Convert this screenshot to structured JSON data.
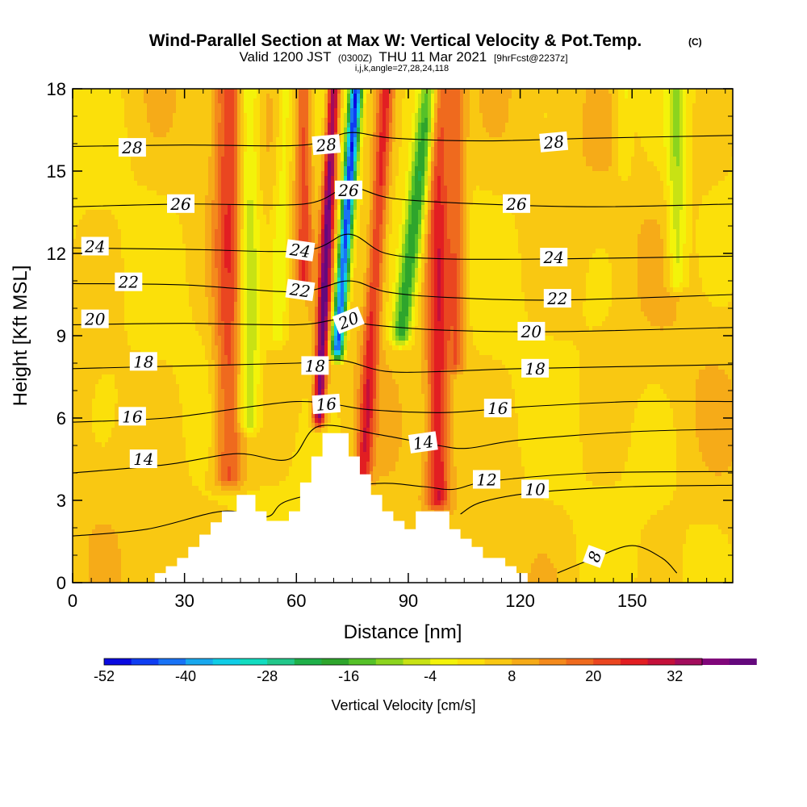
{
  "title": "Wind-Parallel Section at Max W: Vertical Velocity & Pot.Temp.",
  "title_mark": "(C)",
  "subtitle_parts": [
    "Valid 1200 JST",
    "(0300Z)",
    "THU 11 Mar 2021",
    "[9hrFcst@2237z]"
  ],
  "subtitle2": "i,j,k,angle=27,28,24,118",
  "colors": {
    "terrain": "#ffffff",
    "contour": "#000000",
    "palette": [
      "#0a0ae0",
      "#0f3ef2",
      "#1973f6",
      "#19a8ee",
      "#10cde6",
      "#12dcc0",
      "#22c78a",
      "#1fb049",
      "#2ea52c",
      "#55c128",
      "#8cd41e",
      "#c8e214",
      "#f3f30a",
      "#fbe00a",
      "#f9c812",
      "#f6ab18",
      "#f48a1c",
      "#ef6a1e",
      "#ea4620",
      "#e21e22",
      "#c4103a",
      "#a20c5c",
      "#80067a",
      "#64087c"
    ]
  },
  "chart_data": {
    "type": "heatmap",
    "xlabel": "Distance [nm]",
    "ylabel": "Height [Kft MSL]",
    "xlim": [
      0,
      177
    ],
    "ylim": [
      0,
      18
    ],
    "xticks": [
      0,
      30,
      60,
      90,
      120,
      150
    ],
    "yticks": [
      0,
      3,
      6,
      9,
      12,
      15,
      18
    ],
    "colorbar": {
      "label": "Vertical Velocity [cm/s]",
      "tick_values": [
        -52,
        -40,
        -28,
        -16,
        -4,
        8,
        20,
        32
      ],
      "range": [
        -52,
        36
      ],
      "interval": 4
    },
    "terrain_profile": [
      [
        0,
        0
      ],
      [
        22,
        0
      ],
      [
        22,
        0.35
      ],
      [
        25,
        0.35
      ],
      [
        25,
        0.6
      ],
      [
        28,
        0.6
      ],
      [
        28,
        0.9
      ],
      [
        31,
        0.9
      ],
      [
        31,
        1.3
      ],
      [
        34,
        1.3
      ],
      [
        34,
        1.75
      ],
      [
        37,
        1.75
      ],
      [
        37,
        2.2
      ],
      [
        40,
        2.2
      ],
      [
        40,
        2.6
      ],
      [
        44,
        2.6
      ],
      [
        44,
        3.2
      ],
      [
        49,
        3.2
      ],
      [
        49,
        2.6
      ],
      [
        52,
        2.6
      ],
      [
        52,
        2.25
      ],
      [
        58,
        2.25
      ],
      [
        58,
        2.6
      ],
      [
        61,
        2.6
      ],
      [
        61,
        3.65
      ],
      [
        64,
        3.65
      ],
      [
        64,
        4.6
      ],
      [
        67,
        4.6
      ],
      [
        67,
        5.45
      ],
      [
        74,
        5.45
      ],
      [
        74,
        4.6
      ],
      [
        77,
        4.6
      ],
      [
        77,
        3.95
      ],
      [
        80,
        3.95
      ],
      [
        80,
        3.2
      ],
      [
        83,
        3.2
      ],
      [
        83,
        2.6
      ],
      [
        86,
        2.6
      ],
      [
        86,
        2.25
      ],
      [
        89,
        2.25
      ],
      [
        89,
        1.95
      ],
      [
        92,
        1.95
      ],
      [
        92,
        2.6
      ],
      [
        101,
        2.6
      ],
      [
        101,
        1.95
      ],
      [
        104,
        1.95
      ],
      [
        104,
        1.6
      ],
      [
        107,
        1.6
      ],
      [
        107,
        1.3
      ],
      [
        110,
        1.3
      ],
      [
        110,
        0.9
      ],
      [
        116,
        0.9
      ],
      [
        116,
        0.6
      ],
      [
        119,
        0.6
      ],
      [
        119,
        0.35
      ],
      [
        122,
        0.35
      ],
      [
        122,
        0
      ],
      [
        177,
        0
      ]
    ],
    "velocity_features": [
      {
        "type": "updraft",
        "x_base": 66,
        "y_base": 6.0,
        "x_top": 70,
        "y_top": 18,
        "peak": 34,
        "halfwidth_nm": 1.6
      },
      {
        "type": "downdraft",
        "x_base": 71,
        "y_base": 8.5,
        "x_top": 76,
        "y_top": 18,
        "peak": -52,
        "halfwidth_nm": 1.7
      },
      {
        "type": "updraft",
        "x_base": 78,
        "y_base": 4.0,
        "x_top": 84,
        "y_top": 18,
        "peak": 20,
        "halfwidth_nm": 2.2
      },
      {
        "type": "downdraft",
        "x_base": 88,
        "y_base": 9.0,
        "x_top": 96,
        "y_top": 18,
        "peak": -24,
        "halfwidth_nm": 2.6
      },
      {
        "type": "updraft",
        "x_base": 103,
        "y_base": 8.0,
        "x_top": 103,
        "y_top": 18,
        "peak": 14,
        "halfwidth_nm": 2.4
      },
      {
        "type": "downdraft",
        "x_base": 55,
        "y_base": 9.0,
        "x_top": 57,
        "y_top": 18,
        "peak": -8,
        "halfwidth_nm": 2.2
      },
      {
        "type": "updraft",
        "x_base": 62,
        "y_base": 11.0,
        "x_top": 62,
        "y_top": 18,
        "peak": 16,
        "halfwidth_nm": 2.0
      },
      {
        "type": "downdraft",
        "x_base": 162,
        "y_base": 11.0,
        "x_top": 162,
        "y_top": 18,
        "peak": -12,
        "halfwidth_nm": 2.5
      },
      {
        "type": "downdraft",
        "x_base": 148,
        "y_base": 15.0,
        "x_top": 148,
        "y_top": 18,
        "peak": -6,
        "halfwidth_nm": 2.0
      },
      {
        "type": "downdraft",
        "x_base": 47,
        "y_base": 5.8,
        "x_top": 47,
        "y_top": 6.0,
        "peak": -14,
        "halfwidth_nm": 3.0
      },
      {
        "type": "updraft",
        "x_base": 42,
        "y_base": 3.8,
        "x_top": 42,
        "y_top": 4.2,
        "peak": 18,
        "halfwidth_nm": 4.0
      },
      {
        "type": "updraft",
        "x_base": 98,
        "y_base": 3.0,
        "x_top": 98,
        "y_top": 3.3,
        "peak": 22,
        "halfwidth_nm": 3.0
      }
    ],
    "theta_contours": [
      {
        "label": "8",
        "pts": [
          [
            130,
            0.35
          ],
          [
            140,
            0.9
          ],
          [
            150,
            1.35
          ],
          [
            158,
            0.9
          ],
          [
            162,
            0.35
          ]
        ]
      },
      {
        "label": "10",
        "pts": [
          [
            104,
            2.5
          ],
          [
            110,
            2.95
          ],
          [
            125,
            3.3
          ],
          [
            150,
            3.5
          ],
          [
            177,
            3.55
          ]
        ]
      },
      {
        "label": "12",
        "pts": [
          [
            0,
            1.7
          ],
          [
            20,
            1.95
          ],
          [
            40,
            2.6
          ],
          [
            52,
            2.4
          ],
          [
            58,
            3.0
          ],
          [
            80,
            3.6
          ],
          [
            94,
            3.5
          ],
          [
            102,
            3.4
          ],
          [
            112,
            3.7
          ],
          [
            140,
            4.0
          ],
          [
            177,
            4.05
          ]
        ]
      },
      {
        "label": "14",
        "pts": [
          [
            0,
            4.0
          ],
          [
            25,
            4.3
          ],
          [
            44,
            4.7
          ],
          [
            58,
            4.5
          ],
          [
            66,
            5.7
          ],
          [
            82,
            5.4
          ],
          [
            98,
            5.0
          ],
          [
            106,
            4.9
          ],
          [
            120,
            5.2
          ],
          [
            150,
            5.5
          ],
          [
            177,
            5.6
          ]
        ]
      },
      {
        "label": "16",
        "pts": [
          [
            0,
            5.85
          ],
          [
            25,
            6.0
          ],
          [
            47,
            6.4
          ],
          [
            60,
            6.6
          ],
          [
            70,
            6.5
          ],
          [
            80,
            6.3
          ],
          [
            100,
            6.2
          ],
          [
            120,
            6.4
          ],
          [
            150,
            6.6
          ],
          [
            177,
            6.6
          ]
        ]
      },
      {
        "label": "18",
        "pts": [
          [
            0,
            7.8
          ],
          [
            30,
            7.9
          ],
          [
            60,
            8.0
          ],
          [
            72,
            8.1
          ],
          [
            84,
            7.7
          ],
          [
            100,
            7.7
          ],
          [
            120,
            7.8
          ],
          [
            177,
            7.95
          ]
        ]
      },
      {
        "label": "20",
        "pts": [
          [
            0,
            9.4
          ],
          [
            30,
            9.45
          ],
          [
            60,
            9.4
          ],
          [
            72,
            9.6
          ],
          [
            80,
            9.4
          ],
          [
            100,
            9.2
          ],
          [
            130,
            9.15
          ],
          [
            177,
            9.3
          ]
        ]
      },
      {
        "label": "22",
        "pts": [
          [
            0,
            10.9
          ],
          [
            30,
            10.85
          ],
          [
            60,
            10.6
          ],
          [
            74,
            11.0
          ],
          [
            84,
            10.6
          ],
          [
            100,
            10.4
          ],
          [
            130,
            10.3
          ],
          [
            177,
            10.5
          ]
        ]
      },
      {
        "label": "24",
        "pts": [
          [
            0,
            12.2
          ],
          [
            30,
            12.15
          ],
          [
            62,
            12.1
          ],
          [
            74,
            12.7
          ],
          [
            84,
            12.0
          ],
          [
            100,
            11.8
          ],
          [
            130,
            11.8
          ],
          [
            177,
            11.9
          ]
        ]
      },
      {
        "label": "26",
        "pts": [
          [
            0,
            13.7
          ],
          [
            30,
            13.8
          ],
          [
            62,
            13.8
          ],
          [
            74,
            14.4
          ],
          [
            86,
            14.0
          ],
          [
            110,
            13.8
          ],
          [
            140,
            13.7
          ],
          [
            177,
            13.8
          ]
        ]
      },
      {
        "label": "28",
        "pts": [
          [
            0,
            15.9
          ],
          [
            30,
            15.95
          ],
          [
            62,
            15.95
          ],
          [
            74,
            16.4
          ],
          [
            86,
            16.2
          ],
          [
            110,
            16.1
          ],
          [
            140,
            16.2
          ],
          [
            177,
            16.3
          ]
        ]
      }
    ],
    "contour_labels": [
      {
        "text": "28",
        "x": 16,
        "y": 15.85,
        "rot": 0
      },
      {
        "text": "28",
        "x": 68,
        "y": 15.95,
        "rot": -5
      },
      {
        "text": "28",
        "x": 129,
        "y": 16.05,
        "rot": -5
      },
      {
        "text": "26",
        "x": 29,
        "y": 13.8,
        "rot": 0
      },
      {
        "text": "26",
        "x": 74,
        "y": 14.3,
        "rot": 0
      },
      {
        "text": "26",
        "x": 119,
        "y": 13.8,
        "rot": 0
      },
      {
        "text": "24",
        "x": 6,
        "y": 12.25,
        "rot": 0
      },
      {
        "text": "24",
        "x": 61,
        "y": 12.1,
        "rot": 8
      },
      {
        "text": "24",
        "x": 129,
        "y": 11.85,
        "rot": 0
      },
      {
        "text": "22",
        "x": 15,
        "y": 10.95,
        "rot": 0
      },
      {
        "text": "22",
        "x": 61,
        "y": 10.65,
        "rot": 8
      },
      {
        "text": "22",
        "x": 130,
        "y": 10.35,
        "rot": 0
      },
      {
        "text": "20",
        "x": 6,
        "y": 9.6,
        "rot": 0
      },
      {
        "text": "20",
        "x": 74,
        "y": 9.55,
        "rot": -22
      },
      {
        "text": "20",
        "x": 123,
        "y": 9.15,
        "rot": 0
      },
      {
        "text": "18",
        "x": 19,
        "y": 8.05,
        "rot": 0
      },
      {
        "text": "18",
        "x": 65,
        "y": 7.9,
        "rot": 0
      },
      {
        "text": "18",
        "x": 124,
        "y": 7.8,
        "rot": 0
      },
      {
        "text": "16",
        "x": 16,
        "y": 6.05,
        "rot": 0
      },
      {
        "text": "16",
        "x": 68,
        "y": 6.5,
        "rot": -4
      },
      {
        "text": "16",
        "x": 114,
        "y": 6.35,
        "rot": 0
      },
      {
        "text": "14",
        "x": 19,
        "y": 4.5,
        "rot": 0
      },
      {
        "text": "14",
        "x": 94,
        "y": 5.1,
        "rot": -8
      },
      {
        "text": "12",
        "x": 111,
        "y": 3.75,
        "rot": 0
      },
      {
        "text": "10",
        "x": 124,
        "y": 3.4,
        "rot": 0
      },
      {
        "text": "8",
        "x": 140,
        "y": 0.95,
        "rot": -70
      }
    ]
  }
}
